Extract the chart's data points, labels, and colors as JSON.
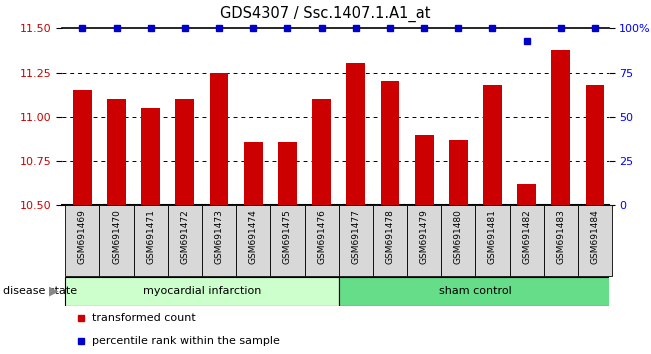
{
  "title": "GDS4307 / Ssc.1407.1.A1_at",
  "samples": [
    "GSM691469",
    "GSM691470",
    "GSM691471",
    "GSM691472",
    "GSM691473",
    "GSM691474",
    "GSM691475",
    "GSM691476",
    "GSM691477",
    "GSM691478",
    "GSM691479",
    "GSM691480",
    "GSM691481",
    "GSM691482",
    "GSM691483",
    "GSM691484"
  ],
  "bar_values": [
    11.15,
    11.1,
    11.05,
    11.1,
    11.25,
    10.855,
    10.855,
    11.1,
    11.305,
    11.2,
    10.9,
    10.87,
    11.18,
    10.62,
    11.38,
    11.18
  ],
  "percentile_values": [
    100,
    100,
    100,
    100,
    100,
    100,
    100,
    100,
    100,
    100,
    100,
    100,
    100,
    93,
    100,
    100
  ],
  "bar_color": "#cc0000",
  "percentile_color": "#0000cc",
  "ylim_left": [
    10.5,
    11.5
  ],
  "ylim_right": [
    0,
    100
  ],
  "yticks_left": [
    10.5,
    10.75,
    11.0,
    11.25,
    11.5
  ],
  "yticks_right": [
    0,
    25,
    50,
    75,
    100
  ],
  "ytick_labels_right": [
    "0",
    "25",
    "50",
    "75",
    "100%"
  ],
  "grid_lines": [
    10.75,
    11.0,
    11.25
  ],
  "group1_label": "myocardial infarction",
  "group1_start": 0,
  "group1_end": 7,
  "group1_color": "#ccffcc",
  "group2_label": "sham control",
  "group2_start": 8,
  "group2_end": 15,
  "group2_color": "#66dd88",
  "disease_state_label": "disease state",
  "legend_item1_label": "transformed count",
  "legend_item1_color": "#cc0000",
  "legend_item2_label": "percentile rank within the sample",
  "legend_item2_color": "#0000cc",
  "bg_color": "#ffffff",
  "title_fontsize": 10.5,
  "bar_width": 0.55,
  "xlim": [
    -0.6,
    15.4
  ]
}
